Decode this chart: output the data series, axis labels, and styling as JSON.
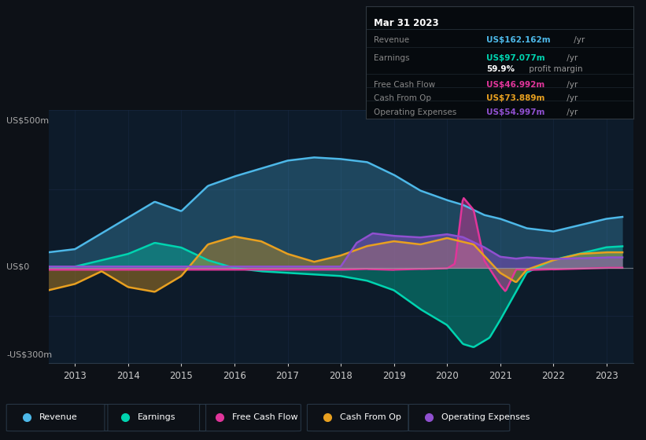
{
  "bg_color": "#0d1117",
  "plot_bg_color": "#0d1b2a",
  "title_box_date": "Mar 31 2023",
  "y_label_top": "US$500m",
  "y_label_zero": "US$0",
  "y_label_bottom": "-US$300m",
  "x_ticks": [
    2013,
    2014,
    2015,
    2016,
    2017,
    2018,
    2019,
    2020,
    2021,
    2022,
    2023
  ],
  "legend_items": [
    {
      "label": "Revenue",
      "color": "#4db8e8"
    },
    {
      "label": "Earnings",
      "color": "#00d4b0"
    },
    {
      "label": "Free Cash Flow",
      "color": "#e0359a"
    },
    {
      "label": "Cash From Op",
      "color": "#e8a020"
    },
    {
      "label": "Operating Expenses",
      "color": "#9050d0"
    }
  ],
  "ylim": [
    -300,
    500
  ],
  "xlim": [
    2012.5,
    2023.5
  ],
  "info_rows": [
    {
      "label": "Revenue",
      "val": "US$162.162m",
      "suffix": " /yr",
      "val_color": "#4db8e8"
    },
    {
      "label": "Earnings",
      "val": "US$97.077m",
      "suffix": " /yr",
      "val_color": "#00d4b0"
    },
    {
      "label": "",
      "val": "59.9%",
      "suffix": " profit margin",
      "val_color": "#ffffff"
    },
    {
      "label": "Free Cash Flow",
      "val": "US$46.992m",
      "suffix": " /yr",
      "val_color": "#e0359a"
    },
    {
      "label": "Cash From Op",
      "val": "US$73.889m",
      "suffix": " /yr",
      "val_color": "#e8a020"
    },
    {
      "label": "Operating Expenses",
      "val": "US$54.997m",
      "suffix": " /yr",
      "val_color": "#9050d0"
    }
  ]
}
